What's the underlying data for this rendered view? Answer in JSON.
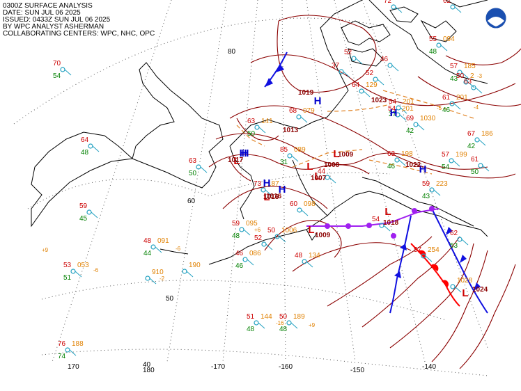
{
  "header": {
    "line1": "0300Z SURFACE ANALYSIS",
    "line2": "DATE: SUN JUL 06 2025",
    "line3": "ISSUED: 0433Z SUN JUL 06 2025",
    "line4": "BY WPC ANALYST ASHERMAN",
    "line5": "COLLABORATING CENTERS: WPC, NHC, OPC"
  },
  "logo": {
    "name": "noaa-logo"
  },
  "lat_labels": [
    "80",
    "60",
    "50",
    "40"
  ],
  "lon_labels": [
    "170",
    "180",
    "-170",
    "-160",
    "-150",
    "-140"
  ],
  "pressure_centers": [
    {
      "type": "H",
      "value": "1019"
    },
    {
      "type": "H",
      "value": "1023"
    },
    {
      "type": "H",
      "value": ""
    },
    {
      "type": "H",
      "value": "1022"
    },
    {
      "type": "H",
      "value": "1013"
    },
    {
      "type": "H",
      "value": ""
    },
    {
      "type": "H",
      "value": "1016"
    },
    {
      "type": "L",
      "value": "1017"
    },
    {
      "type": "L",
      "value": "1009"
    },
    {
      "type": "L",
      "value": "1008"
    },
    {
      "type": "L",
      "value": "1007"
    },
    {
      "type": "L",
      "value": "1016"
    },
    {
      "type": "L",
      "value": "1018"
    },
    {
      "type": "L",
      "value": "1009"
    },
    {
      "type": "L",
      "value": "1024"
    }
  ],
  "station_obs": [
    {
      "t": "70",
      "d": "54",
      "p": ""
    },
    {
      "t": "64",
      "d": "48",
      "p": ""
    },
    {
      "t": "63",
      "d": "50",
      "p": ""
    },
    {
      "t": "59",
      "d": "45",
      "p": ""
    },
    {
      "t": "48",
      "d": "44",
      "p": "091"
    },
    {
      "t": "53",
      "d": "51",
      "p": "053"
    },
    {
      "t": "",
      "d": "",
      "p": "910"
    },
    {
      "t": "",
      "d": "",
      "p": "190"
    },
    {
      "t": "76",
      "d": "74",
      "p": "188"
    },
    {
      "t": "51",
      "d": "48",
      "p": "144"
    },
    {
      "t": "50",
      "d": "48",
      "p": "189"
    },
    {
      "t": "48",
      "d": "",
      "p": "134"
    },
    {
      "t": "46",
      "d": "46",
      "p": "086"
    },
    {
      "t": "52",
      "d": "",
      "p": ""
    },
    {
      "t": "59",
      "d": "48",
      "p": "095"
    },
    {
      "t": "50",
      "d": "",
      "p": "1006"
    },
    {
      "t": "60",
      "d": "",
      "p": "098"
    },
    {
      "t": "85",
      "d": "31",
      "p": "089"
    },
    {
      "t": "63",
      "d": "50",
      "p": "141"
    },
    {
      "t": "68",
      "d": "",
      "p": "079"
    },
    {
      "t": "64",
      "d": "",
      "p": "129"
    },
    {
      "t": "52",
      "d": "",
      "p": ""
    },
    {
      "t": "54",
      "d": "37",
      "p": "201"
    },
    {
      "t": "54",
      "d": "",
      "p": "201"
    },
    {
      "t": "69",
      "d": "42",
      "p": "1030"
    },
    {
      "t": "61",
      "d": "46",
      "p": "201"
    },
    {
      "t": "67",
      "d": "42",
      "p": "186"
    },
    {
      "t": "57",
      "d": "54",
      "p": "199"
    },
    {
      "t": "61",
      "d": "50",
      "p": ""
    },
    {
      "t": "59",
      "d": "43",
      "p": "223"
    },
    {
      "t": "63",
      "d": "46",
      "p": "198"
    },
    {
      "t": "54",
      "d": "",
      "p": ""
    },
    {
      "t": "57",
      "d": "",
      "p": "254"
    },
    {
      "t": "62",
      "d": "53",
      "p": ""
    },
    {
      "t": "55",
      "d": "48",
      "p": "094"
    },
    {
      "t": "57",
      "d": "43",
      "p": "185"
    },
    {
      "t": "50",
      "d": "",
      "p": "2"
    },
    {
      "t": "73",
      "d": "",
      "p": "187"
    },
    {
      "t": "44",
      "d": "",
      "p": ""
    },
    {
      "t": "72",
      "d": "",
      "p": ""
    },
    {
      "t": "62",
      "d": "",
      "p": ""
    },
    {
      "t": "63",
      "d": "",
      "p": ""
    },
    {
      "t": "52",
      "d": "",
      "p": ""
    },
    {
      "t": "37",
      "d": "",
      "p": ""
    },
    {
      "t": "46",
      "d": "",
      "p": ""
    },
    {
      "t": "",
      "d": "",
      "p": "1028"
    }
  ],
  "pressure_tendencies": [
    "+9",
    "-6",
    "-2",
    "-6",
    "+6",
    "+9",
    "-16",
    "-5",
    "-4",
    "-3"
  ],
  "colors": {
    "isobar": "#8b0000",
    "coast": "#000000",
    "grid": "#555555",
    "high": "#0000cc",
    "low": "#cc0000",
    "cold_front": "#1010e0",
    "warm_front": "#ff0000",
    "occluded_front": "#a020f0",
    "trough": "#e08020",
    "station": "#20a0c0",
    "temp": "#cc0000",
    "dewp": "#008000",
    "press": "#e08000"
  }
}
